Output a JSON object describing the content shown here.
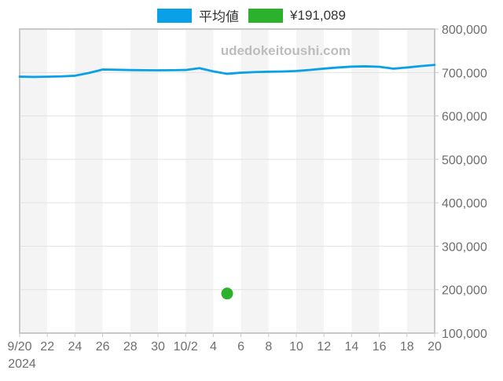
{
  "legend": {
    "items": [
      {
        "name": "average",
        "label": "平均値",
        "color": "#0aa0e8"
      },
      {
        "name": "price-point",
        "label": "¥191,089",
        "color": "#2cb12c"
      }
    ]
  },
  "watermark": "udedokeitoushi.com",
  "chart_data": {
    "type": "line",
    "title": "",
    "xlabel": "",
    "ylabel": "",
    "x": [
      "9/20",
      "9/21",
      "9/22",
      "9/23",
      "9/24",
      "9/25",
      "9/26",
      "9/27",
      "9/28",
      "9/29",
      "9/30",
      "10/1",
      "10/2",
      "10/3",
      "10/4",
      "10/5",
      "10/6",
      "10/7",
      "10/8",
      "10/9",
      "10/10",
      "10/11",
      "10/12",
      "10/13",
      "10/14",
      "10/15",
      "10/16",
      "10/17",
      "10/18",
      "10/19",
      "10/20"
    ],
    "series": [
      {
        "name": "平均値",
        "type": "line",
        "color": "#0aa0e8",
        "values": [
          690500,
          689800,
          690300,
          691000,
          692500,
          699000,
          706800,
          706300,
          705600,
          705300,
          705100,
          705200,
          705800,
          710000,
          702500,
          697000,
          699500,
          701000,
          701800,
          702300,
          703500,
          706000,
          709000,
          711500,
          713500,
          714200,
          713200,
          708800,
          711500,
          714800,
          717500
        ]
      },
      {
        "name": "¥191,089",
        "type": "scatter",
        "color": "#2cb12c",
        "points": [
          {
            "x": "10/5",
            "y": 191089
          }
        ]
      }
    ],
    "xtick_labels": [
      "9/20",
      "22",
      "24",
      "26",
      "28",
      "30",
      "10/2",
      "4",
      "6",
      "8",
      "10",
      "12",
      "14",
      "16",
      "18",
      "20"
    ],
    "xtick_sublabel": {
      "index": 0,
      "text": "2024"
    },
    "ytick_values": [
      100000,
      200000,
      300000,
      400000,
      500000,
      600000,
      700000,
      800000
    ],
    "ylim": [
      100000,
      800000
    ],
    "grid": true,
    "striped_background": true,
    "legend_position": "top"
  },
  "colors": {
    "stripe": "#f4f4f4",
    "stripe_alt": "#ffffff",
    "gridline": "#e2e2e2",
    "plot_border": "#c9c9c9",
    "tick": "#c9c9c9",
    "axis_text": "#6e6e6e",
    "watermark_text": "#bdbdbd"
  }
}
